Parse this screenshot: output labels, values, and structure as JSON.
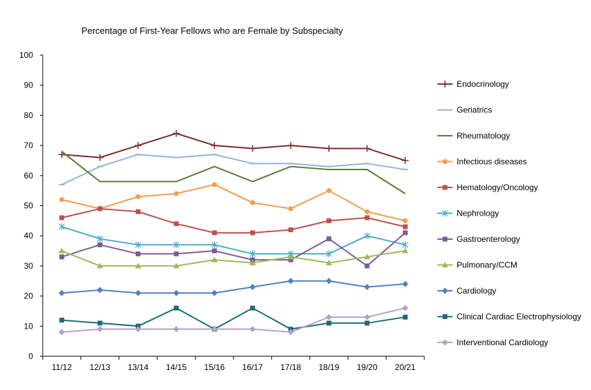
{
  "chart_data": {
    "type": "line",
    "title": "Percentage of First-Year Fellows who are Female by Subspecialty",
    "xlabel": "",
    "ylabel": "",
    "categories": [
      "11/12",
      "12/13",
      "13/14",
      "14/15",
      "15/16",
      "16/17",
      "17/18",
      "18/19",
      "19/20",
      "20/21"
    ],
    "ylim": [
      0,
      100
    ],
    "yticks": [
      0,
      10,
      20,
      30,
      40,
      50,
      60,
      70,
      80,
      90,
      100
    ],
    "grid": false,
    "legend": "right",
    "series": [
      {
        "name": "Endocrinology",
        "color": "#7b2c2c",
        "marker": "plus",
        "values": [
          67,
          66,
          70,
          74,
          70,
          69,
          70,
          69,
          69,
          65
        ]
      },
      {
        "name": "Geriatrics",
        "color": "#95b3d7",
        "marker": "dash",
        "values": [
          57,
          63,
          67,
          66,
          67,
          64,
          64,
          63,
          64,
          62
        ]
      },
      {
        "name": "Rheumatology",
        "color": "#5e7a31",
        "marker": "none",
        "values": [
          68,
          58,
          58,
          58,
          63,
          58,
          63,
          62,
          62,
          54
        ]
      },
      {
        "name": "Infectious diseases",
        "color": "#f39c4a",
        "marker": "circle",
        "values": [
          52,
          49,
          53,
          54,
          57,
          51,
          49,
          55,
          48,
          45
        ]
      },
      {
        "name": "Hematology/Oncology",
        "color": "#c0504d",
        "marker": "square",
        "values": [
          46,
          49,
          48,
          44,
          41,
          41,
          42,
          45,
          46,
          43
        ]
      },
      {
        "name": "Nephrology",
        "color": "#4bacc6",
        "marker": "star",
        "values": [
          43,
          39,
          37,
          37,
          37,
          34,
          34,
          34,
          40,
          37
        ]
      },
      {
        "name": "Gastroenterology",
        "color": "#7f5b9a",
        "marker": "square",
        "values": [
          33,
          37,
          34,
          34,
          35,
          32,
          32,
          39,
          30,
          41
        ]
      },
      {
        "name": "Pulmonary/CCM",
        "color": "#9bbb59",
        "marker": "triangle",
        "values": [
          35,
          30,
          30,
          30,
          32,
          31,
          33,
          31,
          33,
          35
        ]
      },
      {
        "name": "Cardiology",
        "color": "#4f81bd",
        "marker": "diamond",
        "values": [
          21,
          22,
          21,
          21,
          21,
          23,
          25,
          25,
          23,
          24
        ]
      },
      {
        "name": "Clinical Cardiac Electrophysiology",
        "color": "#1f6b75",
        "marker": "square",
        "values": [
          12,
          11,
          10,
          16,
          9,
          16,
          9,
          11,
          11,
          13
        ]
      },
      {
        "name": "Interventional Cardiology",
        "color": "#b3a2c7",
        "marker": "diamond",
        "values": [
          8,
          9,
          9,
          9,
          9,
          9,
          8,
          13,
          13,
          16
        ]
      }
    ]
  }
}
